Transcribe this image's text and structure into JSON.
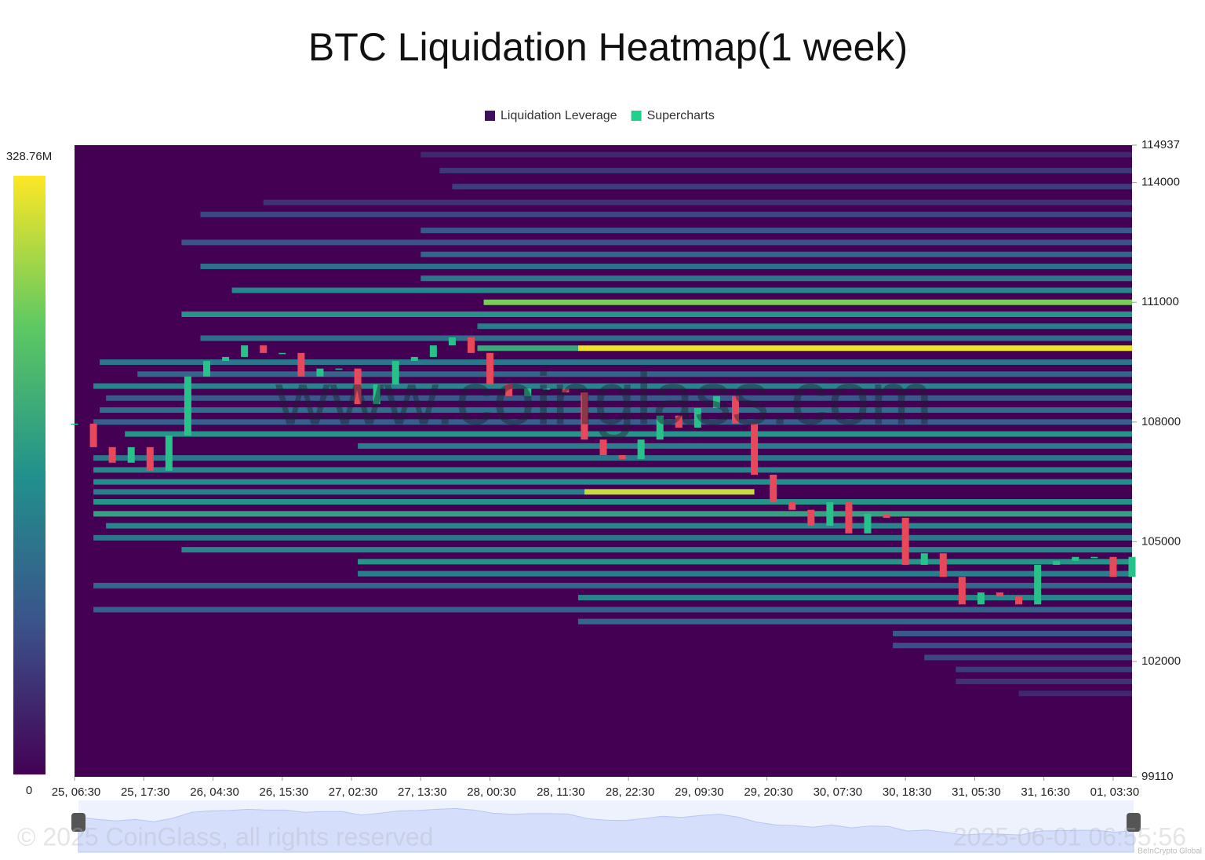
{
  "chart_data": {
    "type": "heatmap",
    "title": "BTC Liquidation Heatmap(1 week)",
    "legend": [
      {
        "name": "Liquidation Leverage",
        "color": "#3d0f5c"
      },
      {
        "name": "Supercharts",
        "color": "#1fd189"
      }
    ],
    "watermark": "www.coinglass.com",
    "copyright": "© 2025 CoinGlass, all rights reserved",
    "timestamp": "2025-06-01 06:55:56",
    "credit": "BeInCrypto Global",
    "xlim": [
      0,
      168
    ],
    "xticks": [
      {
        "value": 0,
        "label": "25, 06:30"
      },
      {
        "value": 11,
        "label": "25, 17:30"
      },
      {
        "value": 22,
        "label": "26, 04:30"
      },
      {
        "value": 33,
        "label": "26, 15:30"
      },
      {
        "value": 44,
        "label": "27, 02:30"
      },
      {
        "value": 55,
        "label": "27, 13:30"
      },
      {
        "value": 66,
        "label": "28, 00:30"
      },
      {
        "value": 77,
        "label": "28, 11:30"
      },
      {
        "value": 88,
        "label": "28, 22:30"
      },
      {
        "value": 99,
        "label": "29, 09:30"
      },
      {
        "value": 110,
        "label": "29, 20:30"
      },
      {
        "value": 121,
        "label": "30, 07:30"
      },
      {
        "value": 132,
        "label": "30, 18:30"
      },
      {
        "value": 143,
        "label": "31, 05:30"
      },
      {
        "value": 154,
        "label": "31, 16:30"
      },
      {
        "value": 165,
        "label": "01, 03:30"
      }
    ],
    "ylim": [
      99110,
      114937
    ],
    "yticks": [
      99110,
      102000,
      105000,
      108000,
      111000,
      114000,
      114937
    ],
    "zlim": [
      0,
      328760000
    ],
    "zticks": [
      0,
      {
        "value": 328760000,
        "label": "328.76M"
      }
    ],
    "colorscale": [
      "#440154",
      "#3b528b",
      "#21918c",
      "#5ec962",
      "#fde725"
    ],
    "bands": {
      "price": [
        114700,
        114300,
        113900,
        113500,
        113200,
        112800,
        112500,
        112200,
        111900,
        111600,
        111300,
        111000,
        110700,
        110400,
        110100,
        109850,
        109850,
        109500,
        109200,
        108900,
        108600,
        108300,
        108000,
        107700,
        107400,
        107100,
        106800,
        106500,
        106250,
        106250,
        106000,
        105700,
        105400,
        105100,
        104800,
        104500,
        104200,
        103900,
        103600,
        103300,
        103000,
        102700,
        102400,
        102100,
        101800,
        101500,
        101200
      ],
      "from": [
        55,
        58,
        60,
        30,
        20,
        55,
        17,
        55,
        20,
        55,
        25,
        65,
        17,
        64,
        20,
        80,
        64,
        4,
        10,
        3,
        5,
        4,
        3,
        8,
        45,
        3,
        3,
        3,
        81,
        3,
        3,
        3,
        5,
        3,
        17,
        45,
        45,
        3,
        80,
        3,
        80,
        130,
        130,
        135,
        140,
        140,
        150
      ],
      "to": [
        168,
        168,
        168,
        168,
        168,
        168,
        168,
        168,
        168,
        168,
        168,
        168,
        168,
        168,
        168,
        168,
        80,
        168,
        168,
        168,
        168,
        168,
        168,
        168,
        168,
        168,
        168,
        168,
        108,
        81,
        168,
        168,
        168,
        168,
        168,
        168,
        168,
        168,
        168,
        168,
        168,
        168,
        168,
        168,
        168,
        168,
        168
      ],
      "value": [
        40000000,
        55000000,
        60000000,
        50000000,
        70000000,
        90000000,
        85000000,
        110000000,
        120000000,
        130000000,
        150000000,
        260000000,
        170000000,
        140000000,
        120000000,
        320000000,
        200000000,
        130000000,
        110000000,
        150000000,
        90000000,
        120000000,
        100000000,
        170000000,
        140000000,
        130000000,
        150000000,
        160000000,
        300000000,
        140000000,
        170000000,
        190000000,
        150000000,
        130000000,
        150000000,
        170000000,
        140000000,
        110000000,
        150000000,
        100000000,
        110000000,
        90000000,
        80000000,
        70000000,
        60000000,
        50000000,
        40000000
      ]
    },
    "candles": {
      "up_color": "#26c28a",
      "down_color": "#e8485c",
      "x": [
        0,
        3,
        6,
        9,
        12,
        15,
        18,
        21,
        24,
        27,
        30,
        33,
        36,
        39,
        42,
        45,
        48,
        51,
        54,
        57,
        60,
        63,
        66,
        69,
        72,
        75,
        78,
        81,
        84,
        87,
        90,
        93,
        96,
        99,
        102,
        105,
        108,
        111,
        114,
        117,
        120,
        123,
        126,
        129,
        132,
        135,
        138,
        141,
        144,
        147,
        150,
        153,
        156,
        159,
        162,
        165,
        168
      ],
      "close": [
        107960,
        107370,
        106980,
        107370,
        106780,
        107660,
        109140,
        109530,
        109630,
        109920,
        109730,
        109730,
        109140,
        109340,
        109340,
        108450,
        108940,
        109530,
        109630,
        109920,
        110120,
        109730,
        108940,
        108650,
        108840,
        108840,
        108740,
        107560,
        107170,
        107070,
        107560,
        108160,
        107860,
        108350,
        108650,
        107960,
        106680,
        105990,
        105800,
        105400,
        105990,
        105210,
        105700,
        105600,
        104420,
        104710,
        104120,
        103430,
        103730,
        103630,
        103430,
        104420,
        104520,
        104620,
        104620,
        104120,
        104620
      ]
    }
  }
}
